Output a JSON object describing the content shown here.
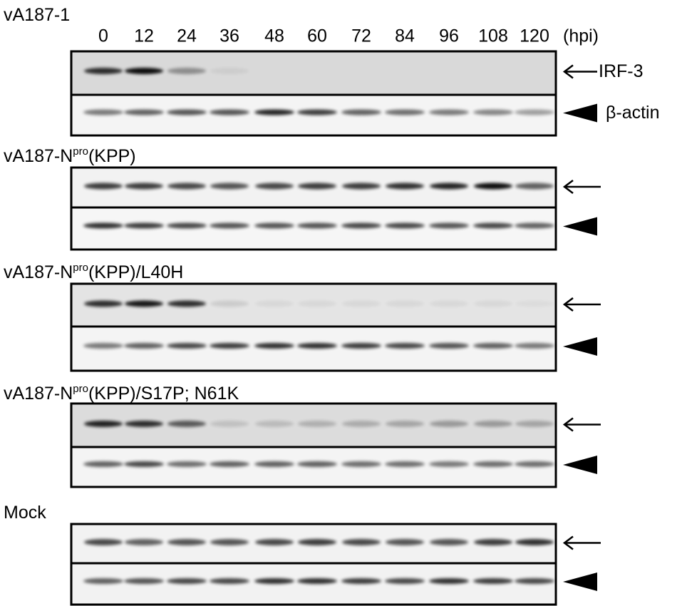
{
  "lanes": {
    "labels": [
      "0",
      "12",
      "24",
      "36",
      "48",
      "60",
      "72",
      "84",
      "96",
      "108",
      "120"
    ],
    "unit": "(hpi)"
  },
  "markers": {
    "target": "IRF-3",
    "control": "β-actin"
  },
  "panels": [
    {
      "title": {
        "main": "vA187-1"
      }
    },
    {
      "title": {
        "main": "vA187-N",
        "sup": "pro",
        "rest": "(KPP)"
      }
    },
    {
      "title": {
        "main": "vA187-N",
        "sup": "pro",
        "rest": "(KPP)/L40H"
      }
    },
    {
      "title": {
        "main": "vA187-N",
        "sup": "pro",
        "rest": "(KPP)/S17P; N61K"
      }
    },
    {
      "title": {
        "main": "Mock"
      }
    }
  ]
}
